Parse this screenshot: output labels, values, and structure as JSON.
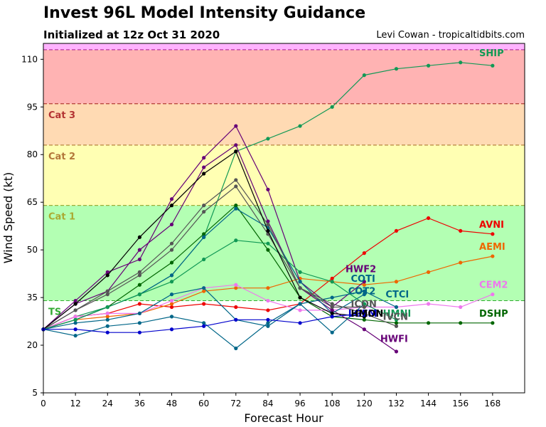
{
  "chart_data": {
    "type": "line",
    "title": "Invest 96L Model Intensity Guidance",
    "subtitle": "Initialized at 12z Oct 31 2020",
    "credit": "Levi Cowan - tropicaltidbits.com",
    "xlabel": "Forecast Hour",
    "ylabel": "Wind Speed (kt)",
    "xlim": [
      0,
      180
    ],
    "ylim": [
      5,
      115
    ],
    "x_ticks": [
      0,
      12,
      24,
      36,
      48,
      60,
      72,
      84,
      96,
      108,
      120,
      132,
      144,
      156,
      168
    ],
    "y_ticks": [
      5,
      20,
      35,
      50,
      65,
      80,
      95,
      110
    ],
    "bands": [
      {
        "label": "TS",
        "from": 34,
        "to": 64,
        "color": "#b3ffb3",
        "label_color": "#33aa33"
      },
      {
        "label": "Cat 1",
        "from": 64,
        "to": 83,
        "color": "#ffffb3",
        "label_color": "#aaaa33"
      },
      {
        "label": "Cat 2",
        "from": 83,
        "to": 96,
        "color": "#ffdab3",
        "label_color": "#b3773a"
      },
      {
        "label": "Cat 3",
        "from": 96,
        "to": 113,
        "color": "#ffb3b3",
        "label_color": "#b33333"
      },
      {
        "label": "",
        "from": 113,
        "to": 115,
        "color": "#ffb3ff",
        "label_color": "#b333b3"
      }
    ],
    "series": [
      {
        "name": "SHIP",
        "color": "#119955",
        "x": [
          0,
          12,
          24,
          36,
          48,
          60,
          72,
          84,
          96,
          108,
          120,
          132,
          144,
          156,
          168
        ],
        "y": [
          25,
          29,
          32,
          36,
          42,
          54,
          81,
          85,
          89,
          95,
          105,
          107,
          108,
          109,
          108
        ]
      },
      {
        "name": "DSHP",
        "color": "#006600",
        "x": [
          0,
          12,
          24,
          36,
          48,
          60,
          72,
          84,
          96,
          108,
          120,
          132,
          144,
          156,
          168
        ],
        "y": [
          25,
          28,
          32,
          39,
          46,
          55,
          64,
          50,
          35,
          29,
          28,
          27,
          27,
          27,
          27
        ]
      },
      {
        "name": "AVNI",
        "color": "#ee0000",
        "x": [
          0,
          12,
          24,
          36,
          48,
          60,
          72,
          84,
          96,
          108,
          120,
          132,
          144,
          156,
          168
        ],
        "y": [
          25,
          29,
          30,
          33,
          32,
          33,
          32,
          31,
          33,
          41,
          49,
          56,
          60,
          56,
          55
        ]
      },
      {
        "name": "AEMI",
        "color": "#ee6600",
        "x": [
          0,
          12,
          24,
          36,
          48,
          60,
          72,
          84,
          96,
          108,
          120,
          132,
          144,
          156,
          168
        ],
        "y": [
          25,
          28,
          29,
          30,
          33,
          37,
          38,
          38,
          41,
          40,
          39,
          40,
          43,
          46,
          48
        ]
      },
      {
        "name": "CEM2",
        "color": "#ee77ee",
        "x": [
          0,
          12,
          24,
          36,
          48,
          60,
          72,
          84,
          96,
          108,
          120,
          132,
          144,
          156,
          168
        ],
        "y": [
          25,
          29,
          30,
          30,
          34,
          38,
          39,
          34,
          31,
          31,
          32,
          32,
          33,
          32,
          36
        ]
      },
      {
        "name": "HWFI",
        "color": "#660077",
        "x": [
          0,
          12,
          24,
          36,
          48,
          60,
          72,
          84,
          96,
          108,
          120,
          132
        ],
        "y": [
          25,
          33,
          37,
          50,
          58,
          76,
          83,
          59,
          38,
          31,
          25,
          18
        ]
      },
      {
        "name": "HWF2",
        "color": "#660077",
        "x": [
          0,
          12,
          24,
          36,
          48,
          60,
          72,
          84,
          96,
          108,
          120
        ],
        "y": [
          25,
          34,
          43,
          47,
          66,
          79,
          89,
          69,
          40,
          32,
          40
        ]
      },
      {
        "name": "CTCI",
        "color": "#006688",
        "x": [
          0,
          12,
          24,
          36,
          48,
          60,
          72,
          84,
          96,
          108,
          120,
          132
        ],
        "y": [
          25,
          27,
          28,
          30,
          36,
          38,
          28,
          26,
          33,
          35,
          37,
          32
        ]
      },
      {
        "name": "COTI",
        "color": "#006688",
        "x": [
          0,
          12,
          24,
          36,
          48,
          60,
          72,
          84,
          96,
          108,
          120
        ],
        "y": [
          25,
          23,
          26,
          27,
          29,
          27,
          19,
          27,
          33,
          24,
          33
        ]
      },
      {
        "name": "COT2",
        "color": "#006688",
        "x": [
          0,
          12,
          24,
          36,
          48,
          60,
          72,
          84,
          96,
          108,
          120
        ],
        "y": [
          25,
          28,
          32,
          36,
          42,
          54,
          63,
          57,
          40,
          30,
          36
        ]
      },
      {
        "name": "HMNI",
        "color": "#119955",
        "x": [
          0,
          12,
          24,
          36,
          48,
          60,
          72,
          84,
          96,
          108,
          120,
          132
        ],
        "y": [
          25,
          28,
          32,
          36,
          40,
          47,
          53,
          52,
          43,
          40,
          33,
          28
        ]
      },
      {
        "name": "IVCN",
        "color": "#555555",
        "x": [
          0,
          12,
          24,
          36,
          48,
          60,
          72,
          84,
          96,
          108,
          120,
          132
        ],
        "y": [
          25,
          31,
          37,
          43,
          52,
          64,
          72,
          58,
          38,
          33,
          30,
          26
        ]
      },
      {
        "name": "ICON",
        "color": "#555555",
        "x": [
          0,
          12,
          24,
          36,
          48,
          60,
          72,
          84,
          96,
          108,
          120
        ],
        "y": [
          25,
          31,
          36,
          42,
          50,
          62,
          70,
          55,
          38,
          32,
          32
        ]
      },
      {
        "name": "HMON",
        "color": "#000000",
        "x": [
          0,
          12,
          24,
          36,
          48,
          60,
          72,
          84,
          96,
          108,
          120
        ],
        "y": [
          25,
          33,
          42,
          54,
          64,
          74,
          81,
          56,
          35,
          30,
          29
        ]
      },
      {
        "name": "LGEM",
        "color": "#0000cc",
        "x": [
          0,
          12,
          24,
          36,
          48,
          60,
          72,
          84,
          96,
          108,
          120
        ],
        "y": [
          25,
          25,
          24,
          24,
          25,
          26,
          28,
          28,
          27,
          29,
          30
        ]
      }
    ],
    "labels": [
      {
        "text": "SHIP",
        "x": 163,
        "y": 111,
        "color": "#119955"
      },
      {
        "text": "AVNI",
        "x": 163,
        "y": 57,
        "color": "#ee0000"
      },
      {
        "text": "AEMI",
        "x": 163,
        "y": 50,
        "color": "#ee6600"
      },
      {
        "text": "CEM2",
        "x": 163,
        "y": 38,
        "color": "#ee77ee"
      },
      {
        "text": "DSHP",
        "x": 163,
        "y": 29,
        "color": "#006600"
      },
      {
        "text": "HWF2",
        "x": 113,
        "y": 43,
        "color": "#660077"
      },
      {
        "text": "COTI",
        "x": 115,
        "y": 40,
        "color": "#006688"
      },
      {
        "text": "COT2",
        "x": 114,
        "y": 36,
        "color": "#006688"
      },
      {
        "text": "CTCI",
        "x": 128,
        "y": 35,
        "color": "#006688"
      },
      {
        "text": "ICON",
        "x": 115,
        "y": 32,
        "color": "#555555"
      },
      {
        "text": "HMNI",
        "x": 127,
        "y": 29,
        "color": "#119955"
      },
      {
        "text": "IVCN",
        "x": 127,
        "y": 28,
        "color": "#555555"
      },
      {
        "text": "HWFI",
        "x": 126,
        "y": 21,
        "color": "#660077"
      },
      {
        "text": "LGEM",
        "x": 114,
        "y": 29,
        "color": "#0000cc"
      },
      {
        "text": "HMON",
        "x": 115,
        "y": 29,
        "color": "#000000"
      }
    ]
  }
}
